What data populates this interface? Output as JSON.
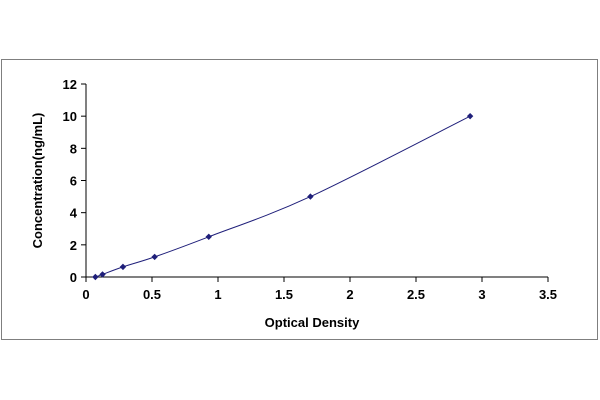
{
  "chart_data": {
    "type": "scatter",
    "title": "",
    "xlabel": "Optical Density",
    "ylabel": "Concentration(ng/mL)",
    "xlim": [
      0,
      3.5
    ],
    "ylim": [
      0,
      12
    ],
    "xticks": [
      "0",
      "0.5",
      "1",
      "1.5",
      "2",
      "2.5",
      "3",
      "3.5"
    ],
    "yticks": [
      "0",
      "2",
      "4",
      "6",
      "8",
      "10",
      "12"
    ],
    "grid": false,
    "legend": "none",
    "series": [
      {
        "points": [
          {
            "x": 0.071,
            "y": 0
          },
          {
            "x": 0.125,
            "y": 0.16
          },
          {
            "x": 0.28,
            "y": 0.63
          },
          {
            "x": 0.52,
            "y": 1.25
          },
          {
            "x": 0.93,
            "y": 2.5
          },
          {
            "x": 1.7,
            "y": 5
          },
          {
            "x": 2.91,
            "y": 10
          }
        ],
        "trendline": true
      }
    ],
    "colors": {
      "marker": "#1f1f7a",
      "line": "#1f1f7a",
      "axis": "#000000"
    }
  }
}
